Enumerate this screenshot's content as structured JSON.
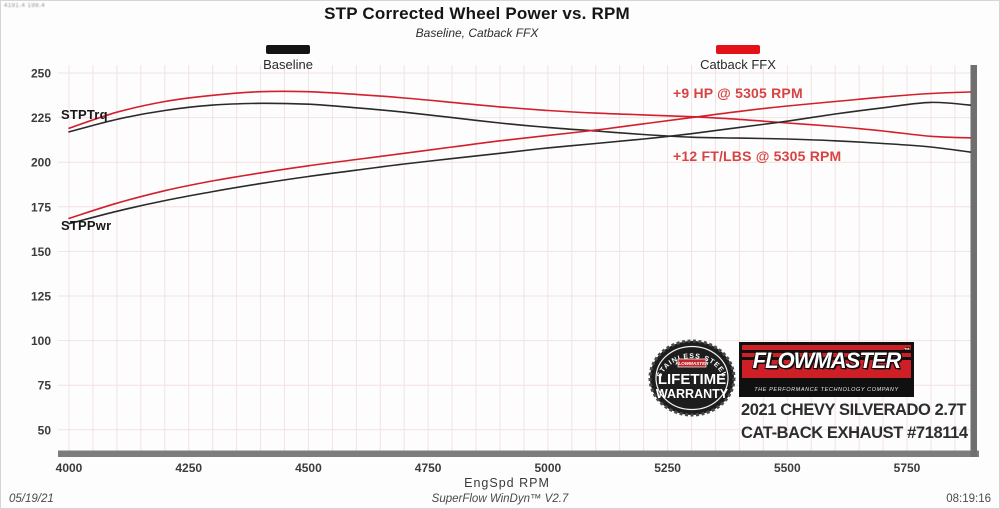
{
  "meta": {
    "cursor_readout": "4191.4  198.4",
    "date": "05/19/21",
    "software": "SuperFlow WinDyn™ V2.7",
    "time": "08:19:16"
  },
  "header": {
    "title": "STP Corrected Wheel Power vs. RPM",
    "subtitle": "Baseline, Catback FFX"
  },
  "legend": {
    "baseline": {
      "label": "Baseline",
      "color": "#141414"
    },
    "catback": {
      "label": "Catback FFX",
      "color": "#e41118"
    }
  },
  "curve_labels": {
    "torque": "STPTrq",
    "power": "STPPwr"
  },
  "annotations": {
    "power_gain": "+9 HP @ 5305 RPM",
    "torque_gain": "+12 FT/LBS @ 5305 RPM"
  },
  "branding": {
    "badge_arc": "STAINLESS STEEL",
    "badge_mini_logo": "FLOWMASTER",
    "badge_line1": "LIFETIME",
    "badge_line2": "WARRANTY",
    "logo_text": "FLOWMASTER",
    "logo_tm": "™",
    "logo_tagline": "THE PERFORMANCE TECHNOLOGY COMPANY",
    "vehicle": "2021 CHEVY SILVERADO 2.7T",
    "product": "CAT-BACK EXHAUST #718114"
  },
  "chart_data": {
    "type": "line",
    "title": "STP Corrected Wheel Power vs. RPM",
    "xlabel": "EngSpd  RPM",
    "ylabel": "",
    "xlim": [
      3975,
      5890
    ],
    "ylim": [
      50,
      250
    ],
    "grid": true,
    "x_ticks": [
      4000,
      4250,
      4500,
      4750,
      5000,
      5250,
      5500,
      5750
    ],
    "y_ticks": [
      250,
      225,
      200,
      175,
      150,
      125,
      100,
      75,
      50
    ],
    "x_grid_step": 50,
    "y_grid_step": 25,
    "x": [
      4000,
      4100,
      4200,
      4300,
      4400,
      4500,
      4600,
      4700,
      4800,
      4900,
      5000,
      5100,
      5200,
      5300,
      5400,
      5500,
      5600,
      5700,
      5800,
      5900
    ],
    "series": [
      {
        "name": "Baseline STPTrq (ft-lbs)",
        "color": "#2a2a2a",
        "values": [
          217,
          224,
          229,
          232,
          233,
          232.5,
          230.5,
          228,
          225,
          222,
          219.5,
          217.5,
          215.5,
          214,
          213.5,
          213,
          212,
          210.5,
          208.5,
          205
        ]
      },
      {
        "name": "Catback FFX STPTrq (ft-lbs)",
        "color": "#d21f2b",
        "values": [
          219,
          228,
          234,
          237.5,
          239.5,
          239.5,
          238,
          236,
          233.5,
          231,
          229,
          227.5,
          226.5,
          225.5,
          224,
          222,
          220,
          217.5,
          214.5,
          213.5
        ]
      },
      {
        "name": "Baseline STPPwr (HP)",
        "color": "#2a2a2a",
        "values": [
          165.5,
          172.5,
          178.5,
          183.5,
          188,
          192,
          195.5,
          199,
          202,
          205,
          208,
          210.5,
          213,
          216,
          219.5,
          223,
          227,
          230.5,
          233.5,
          231.5
        ]
      },
      {
        "name": "Catback FFX STPPwr (HP)",
        "color": "#d21f2b",
        "values": [
          168.5,
          177,
          184,
          189.5,
          194,
          198,
          201.5,
          205,
          208.5,
          212,
          215,
          218,
          221.5,
          225,
          228.5,
          231.5,
          234,
          236.5,
          238.5,
          239.5
        ]
      }
    ]
  }
}
